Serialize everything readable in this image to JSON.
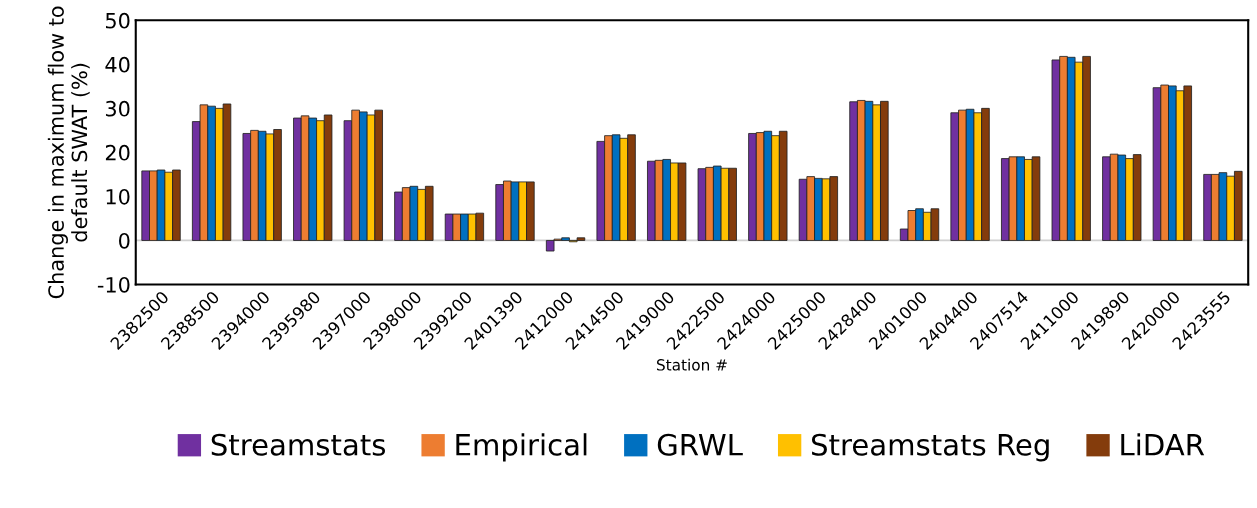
{
  "chart_data": {
    "type": "bar",
    "xlabel": "Station #",
    "ylabel": "Change in maximum flow to\ndefault SWAT (%)",
    "categories": [
      "2382500",
      "2388500",
      "2394000",
      "2395980",
      "2397000",
      "2398000",
      "2399200",
      "2401390",
      "2412000",
      "2414500",
      "2419000",
      "2422500",
      "2424000",
      "2425000",
      "2428400",
      "2401000",
      "2404400",
      "2407514",
      "2411000",
      "2419890",
      "2420000",
      "2423555"
    ],
    "series": [
      {
        "name": "Streamstats",
        "color": "#7030a0",
        "values": [
          15.8,
          27,
          24.3,
          27.8,
          27.2,
          11,
          6,
          12.7,
          -2.4,
          22.5,
          18,
          16.3,
          24.3,
          13.9,
          31.5,
          2.6,
          29,
          18.6,
          41,
          19,
          34.7,
          15
        ]
      },
      {
        "name": "Empirical",
        "color": "#ed7d31",
        "values": [
          15.8,
          30.8,
          25,
          28.3,
          29.6,
          12,
          6,
          13.5,
          0.3,
          23.8,
          18.2,
          16.6,
          24.5,
          14.5,
          31.8,
          6.8,
          29.6,
          19,
          41.8,
          19.6,
          35.3,
          15
        ]
      },
      {
        "name": "GRWL",
        "color": "#0070c0",
        "values": [
          16,
          30.5,
          24.8,
          27.8,
          29.2,
          12.3,
          6,
          13.3,
          0.6,
          24,
          18.4,
          16.9,
          24.8,
          14.1,
          31.6,
          7.2,
          29.8,
          19,
          41.6,
          19.4,
          35.1,
          15.4
        ]
      },
      {
        "name": "Streamstats Reg",
        "color": "#ffc000",
        "values": [
          15.5,
          30,
          24.2,
          27.2,
          28.5,
          11.6,
          6,
          13.3,
          -0.3,
          23.2,
          17.6,
          16.4,
          23.8,
          14,
          30.8,
          6.4,
          29,
          18.4,
          40.5,
          18.6,
          34,
          14.6
        ]
      },
      {
        "name": "LiDAR",
        "color": "#843c0c",
        "values": [
          16,
          31,
          25.2,
          28.5,
          29.6,
          12.3,
          6.2,
          13.3,
          0.6,
          24,
          17.6,
          16.4,
          24.8,
          14.5,
          31.6,
          7.2,
          30,
          19,
          41.8,
          19.5,
          35.1,
          15.7
        ]
      }
    ],
    "ylim": [
      -10,
      50
    ],
    "yticks": [
      -10,
      0,
      10,
      20,
      30,
      40,
      50
    ],
    "ref_lines": [
      {
        "axis": "y",
        "value": 0,
        "color": "#d0d0d0"
      }
    ],
    "legend": "bottom"
  }
}
